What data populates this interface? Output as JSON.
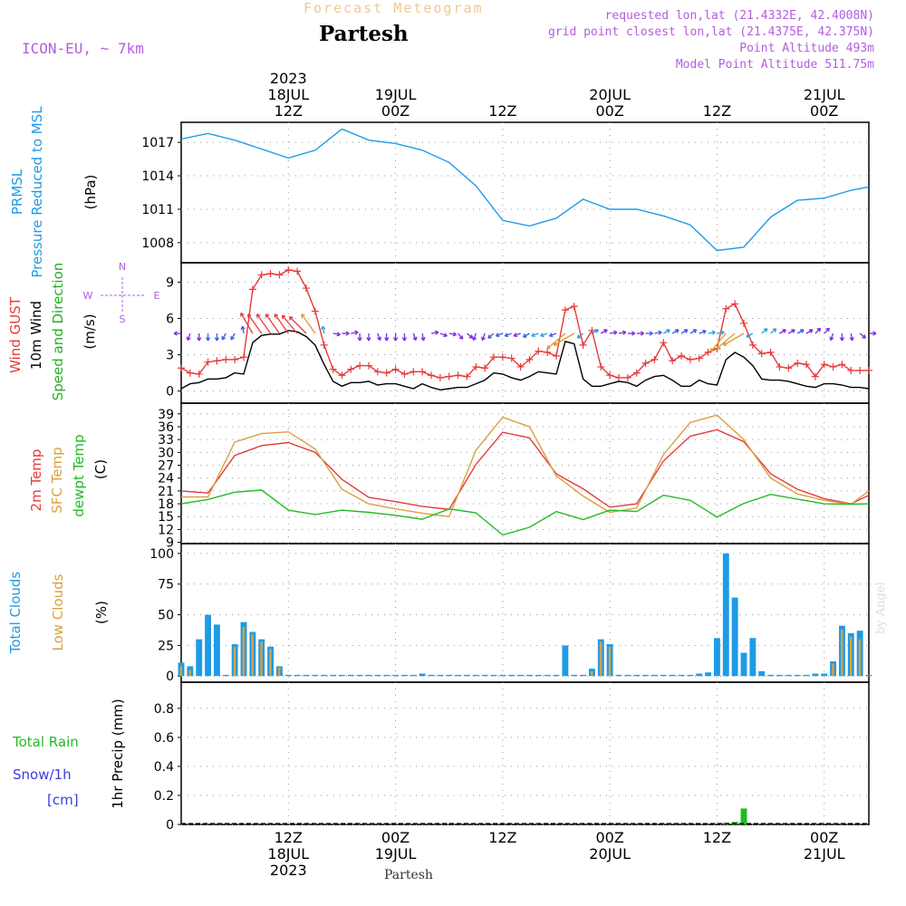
{
  "header": {
    "product": "Forecast Meteogram",
    "location": "Partesh",
    "model": "ICON-EU, ~ 7km",
    "requested": "requested lon,lat (21.4332E, 42.4008N)",
    "gridpoint": "grid point closest lon,lat (21.4375E, 42.375N)",
    "point_altitude": "Point Altitude 493m",
    "model_altitude": "Model Point Altitude 511.75m",
    "footer_location": "Partesh",
    "credit": "by Angel"
  },
  "colors": {
    "pressure": "#1e9be6",
    "gust": "#e63a3a",
    "wind": "#000000",
    "direction": "#22b022",
    "t2m": "#e63a3a",
    "sfc": "#d9a040",
    "dewpt": "#22bb22",
    "total_clouds": "#1e9be6",
    "low_clouds": "#d9a040",
    "rain": "#22bb22",
    "snow": "#3a3ae0",
    "header_purple": "#b25de0",
    "header_orange": "#f0c890"
  },
  "time_axis": {
    "top_year": "2023",
    "ticks": [
      {
        "hour": 12,
        "top1": "18JUL",
        "top2": "12Z",
        "bot1": "12Z",
        "bot2": "18JUL",
        "bot3": "2023"
      },
      {
        "hour": 24,
        "top1": "19JUL",
        "top2": "00Z",
        "bot1": "00Z",
        "bot2": "19JUL",
        "bot3": ""
      },
      {
        "hour": 36,
        "top1": "",
        "top2": "12Z",
        "bot1": "12Z",
        "bot2": "",
        "bot3": ""
      },
      {
        "hour": 48,
        "top1": "20JUL",
        "top2": "00Z",
        "bot1": "00Z",
        "bot2": "20JUL",
        "bot3": ""
      },
      {
        "hour": 60,
        "top1": "",
        "top2": "12Z",
        "bot1": "12Z",
        "bot2": "",
        "bot3": ""
      },
      {
        "hour": 72,
        "top1": "21JUL",
        "top2": "00Z",
        "bot1": "00Z",
        "bot2": "21JUL",
        "bot3": ""
      }
    ]
  },
  "panels": {
    "pressure": {
      "label1": "PRMSL",
      "label2": "Pressure Reduced to MSL",
      "unit": "(hPa)"
    },
    "wind": {
      "label1": "Wind GUST",
      "label2": "10m Wind",
      "label3": "Speed and Direction",
      "unit": "(m/s)",
      "compass_n": "N",
      "compass_s": "S",
      "compass_w": "W",
      "compass_e": "E"
    },
    "temp": {
      "label1": "2m Temp",
      "label2": "SFC Temp",
      "label3": "dewpt Temp",
      "unit": "(C)"
    },
    "clouds": {
      "label1": "Total Clouds",
      "label2": "Low Clouds",
      "unit": "(%)"
    },
    "precip": {
      "label1": "Total  Rain",
      "label2": "Snow/1h",
      "label3": "[cm]",
      "unit": "1hr Precip (mm)"
    }
  },
  "chart_data": [
    {
      "type": "line",
      "name": "pressure",
      "ylabel": "Pressure Reduced to MSL (hPa)",
      "yticks": [
        1008,
        1011,
        1014,
        1017
      ],
      "ylim": [
        1006.2,
        1018.8
      ],
      "x_hours": [
        0,
        3,
        6,
        9,
        12,
        15,
        18,
        21,
        24,
        27,
        30,
        33,
        36,
        39,
        42,
        45,
        48,
        51,
        54,
        57,
        60,
        63,
        66,
        69,
        72,
        75,
        77
      ],
      "series": [
        {
          "name": "PRMSL",
          "values": [
            1017.3,
            1017.8,
            1017.2,
            1016.4,
            1015.6,
            1016.3,
            1018.2,
            1017.2,
            1016.9,
            1016.3,
            1015.2,
            1013.1,
            1010.0,
            1009.5,
            1010.2,
            1011.9,
            1011.0,
            1011.0,
            1010.4,
            1009.6,
            1007.3,
            1007.6,
            1010.3,
            1011.8,
            1012.0,
            1012.7,
            1013.0
          ]
        }
      ],
      "grid": true
    },
    {
      "type": "line",
      "name": "wind",
      "ylabel": "Wind GUST / 10m Wind (m/s)",
      "yticks": [
        0,
        3,
        6,
        9
      ],
      "ylim": [
        -1,
        10.6
      ],
      "x_hours": [
        0,
        1,
        2,
        3,
        4,
        5,
        6,
        7,
        8,
        9,
        10,
        11,
        12,
        13,
        14,
        15,
        16,
        17,
        18,
        19,
        20,
        21,
        22,
        23,
        24,
        25,
        26,
        27,
        28,
        29,
        30,
        31,
        32,
        33,
        34,
        35,
        36,
        37,
        38,
        39,
        40,
        41,
        42,
        43,
        44,
        45,
        46,
        47,
        48,
        49,
        50,
        51,
        52,
        53,
        54,
        55,
        56,
        57,
        58,
        59,
        60,
        61,
        62,
        63,
        64,
        65,
        66,
        67,
        68,
        69,
        70,
        71,
        72,
        73,
        74,
        75,
        76,
        77
      ],
      "series": [
        {
          "name": "Wind GUST",
          "values": [
            1.9,
            1.5,
            1.4,
            2.4,
            2.5,
            2.6,
            2.6,
            2.8,
            8.4,
            9.6,
            9.7,
            9.6,
            10.0,
            9.9,
            8.5,
            6.6,
            3.8,
            1.8,
            1.3,
            1.8,
            2.1,
            2.1,
            1.6,
            1.5,
            1.8,
            1.4,
            1.6,
            1.6,
            1.3,
            1.1,
            1.2,
            1.3,
            1.2,
            2.0,
            1.9,
            2.8,
            2.8,
            2.7,
            2.0,
            2.6,
            3.3,
            3.2,
            2.9,
            6.7,
            7.0,
            3.8,
            5.0,
            2.0,
            1.3,
            1.1,
            1.1,
            1.5,
            2.3,
            2.6,
            4.0,
            2.5,
            2.9,
            2.6,
            2.7,
            3.2,
            3.5,
            6.8,
            7.2,
            5.6,
            3.8,
            3.1,
            3.2,
            2.0,
            1.9,
            2.3,
            2.2,
            1.2,
            2.2,
            2.0,
            2.2,
            1.7,
            1.7,
            1.7
          ]
        },
        {
          "name": "10m Wind",
          "values": [
            0.2,
            0.6,
            0.7,
            1.0,
            1.0,
            1.1,
            1.5,
            1.4,
            4.0,
            4.6,
            4.7,
            4.7,
            5.0,
            4.9,
            4.5,
            3.8,
            2.2,
            0.8,
            0.4,
            0.7,
            0.7,
            0.8,
            0.5,
            0.6,
            0.6,
            0.4,
            0.2,
            0.6,
            0.3,
            0.1,
            0.2,
            0.3,
            0.3,
            0.6,
            0.9,
            1.5,
            1.4,
            1.1,
            0.9,
            1.2,
            1.6,
            1.5,
            1.4,
            4.1,
            3.9,
            1.0,
            0.4,
            0.4,
            0.6,
            0.8,
            0.7,
            0.4,
            0.9,
            1.2,
            1.3,
            0.9,
            0.4,
            0.4,
            0.9,
            0.6,
            0.5,
            2.6,
            3.2,
            2.8,
            2.1,
            1.0,
            0.9,
            0.9,
            0.8,
            0.6,
            0.4,
            0.3,
            0.6,
            0.6,
            0.5,
            0.3,
            0.3,
            0.2
          ]
        }
      ],
      "grid": true
    },
    {
      "type": "line",
      "name": "temperature",
      "ylabel": "Temperature (C)",
      "yticks": [
        9,
        12,
        15,
        18,
        21,
        24,
        27,
        30,
        33,
        36,
        39
      ],
      "ylim": [
        8.7,
        41.5
      ],
      "x_hours": [
        0,
        3,
        6,
        9,
        12,
        15,
        18,
        21,
        24,
        27,
        30,
        33,
        36,
        39,
        42,
        45,
        48,
        51,
        54,
        57,
        60,
        63,
        66,
        69,
        72,
        75,
        77
      ],
      "series": [
        {
          "name": "2m Temp",
          "values": [
            21.0,
            20.5,
            29.3,
            31.6,
            32.3,
            30.0,
            23.7,
            19.5,
            18.5,
            17.4,
            16.7,
            27.2,
            34.7,
            33.4,
            25.0,
            21.5,
            17.2,
            18.0,
            28.0,
            33.8,
            35.3,
            32.5,
            25.0,
            21.4,
            19.2,
            18.0,
            20.0
          ]
        },
        {
          "name": "SFC Temp",
          "values": [
            19.6,
            19.6,
            32.4,
            34.4,
            34.8,
            30.8,
            21.4,
            18.0,
            16.8,
            15.8,
            15.0,
            30.5,
            38.2,
            36.0,
            24.5,
            19.8,
            16.0,
            17.0,
            29.5,
            37.0,
            38.7,
            33.0,
            24.0,
            20.3,
            18.8,
            17.9,
            21.0
          ]
        },
        {
          "name": "dewpt Temp",
          "values": [
            18.0,
            19.0,
            20.7,
            21.2,
            16.5,
            15.5,
            16.5,
            16.0,
            15.3,
            14.4,
            16.8,
            15.9,
            10.7,
            12.5,
            16.2,
            14.3,
            16.5,
            16.2,
            20.0,
            18.8,
            14.9,
            18.1,
            20.2,
            19.1,
            18.0,
            17.9,
            18.0
          ]
        }
      ],
      "grid": true
    },
    {
      "type": "bar",
      "name": "clouds",
      "ylabel": "Total / Low Clouds (%)",
      "yticks": [
        0,
        25,
        50,
        75,
        100
      ],
      "ylim": [
        -5,
        108
      ],
      "x_hours": [
        0,
        1,
        2,
        3,
        4,
        5,
        6,
        7,
        8,
        9,
        10,
        11,
        12,
        13,
        14,
        15,
        16,
        17,
        18,
        19,
        20,
        21,
        22,
        23,
        24,
        25,
        26,
        27,
        28,
        29,
        30,
        31,
        32,
        33,
        34,
        35,
        36,
        37,
        38,
        39,
        40,
        41,
        42,
        43,
        44,
        45,
        46,
        47,
        48,
        49,
        50,
        51,
        52,
        53,
        54,
        55,
        56,
        57,
        58,
        59,
        60,
        61,
        62,
        63,
        64,
        65,
        66,
        67,
        68,
        69,
        70,
        71,
        72,
        73,
        74,
        75,
        76,
        77
      ],
      "series": [
        {
          "name": "Total Clouds",
          "values": [
            11,
            8,
            30,
            50,
            42,
            1,
            26,
            44,
            36,
            30,
            24,
            8,
            1,
            1,
            1,
            1,
            1,
            1,
            1,
            1,
            1,
            1,
            1,
            1,
            1,
            1,
            1,
            2,
            1,
            1,
            1,
            1,
            1,
            1,
            1,
            1,
            1,
            1,
            1,
            1,
            1,
            1,
            1,
            25,
            1,
            1,
            6,
            30,
            26,
            1,
            1,
            1,
            1,
            1,
            1,
            1,
            1,
            1,
            2,
            3,
            31,
            100,
            64,
            19,
            31,
            4,
            1,
            1,
            1,
            1,
            1,
            2,
            2,
            12,
            41,
            35,
            37,
            1
          ]
        },
        {
          "name": "Low Clouds",
          "values": [
            8,
            5,
            0,
            0,
            0,
            0,
            24,
            40,
            34,
            28,
            22,
            7,
            0,
            0,
            0,
            0,
            0,
            0,
            0,
            0,
            0,
            0,
            0,
            0,
            0,
            0,
            0,
            0,
            0,
            0,
            0,
            0,
            0,
            0,
            0,
            0,
            0,
            0,
            0,
            0,
            0,
            0,
            0,
            0,
            0,
            0,
            4,
            28,
            24,
            0,
            0,
            0,
            0,
            0,
            0,
            0,
            0,
            0,
            0,
            0,
            0,
            0,
            0,
            0,
            0,
            0,
            0,
            0,
            0,
            0,
            0,
            0,
            0,
            10,
            38,
            32,
            30,
            0
          ]
        }
      ],
      "grid": true
    },
    {
      "type": "bar",
      "name": "precipitation",
      "ylabel": "1hr Precip (mm)",
      "yticks": [
        0,
        0.2,
        0.4,
        0.6,
        0.8
      ],
      "ylim": [
        0,
        0.98
      ],
      "x_hours": [
        61,
        62,
        63
      ],
      "series": [
        {
          "name": "Total Rain",
          "values": [
            0.012,
            0.018,
            0.11
          ]
        }
      ],
      "grid": true
    }
  ],
  "wind_barbs": {
    "x_hours": [
      0,
      1,
      2,
      3,
      4,
      5,
      6,
      7,
      8,
      9,
      10,
      11,
      12,
      13,
      14,
      15,
      16,
      17,
      18,
      19,
      20,
      21,
      22,
      23,
      24,
      25,
      26,
      27,
      28,
      29,
      30,
      31,
      32,
      33,
      34,
      35,
      36,
      37,
      38,
      39,
      40,
      41,
      42,
      43,
      44,
      45,
      46,
      47,
      48,
      49,
      50,
      51,
      52,
      53,
      54,
      55,
      56,
      57,
      58,
      59,
      60,
      61,
      62,
      63,
      64,
      65,
      66,
      67,
      68,
      69,
      70,
      71,
      72,
      73,
      74,
      75,
      76,
      77
    ],
    "direction_deg": [
      270,
      200,
      180,
      180,
      180,
      210,
      210,
      350,
      330,
      325,
      325,
      325,
      325,
      320,
      315,
      325,
      350,
      100,
      90,
      80,
      180,
      180,
      160,
      180,
      180,
      180,
      160,
      170,
      80,
      110,
      100,
      140,
      130,
      200,
      200,
      230,
      250,
      250,
      250,
      240,
      250,
      250,
      250,
      230,
      240,
      230,
      60,
      60,
      80,
      80,
      90,
      90,
      90,
      80,
      60,
      60,
      60,
      60,
      70,
      80,
      80,
      220,
      230,
      240,
      240,
      50,
      50,
      60,
      60,
      60,
      60,
      45,
      45,
      200,
      180,
      170,
      130,
      90
    ]
  }
}
